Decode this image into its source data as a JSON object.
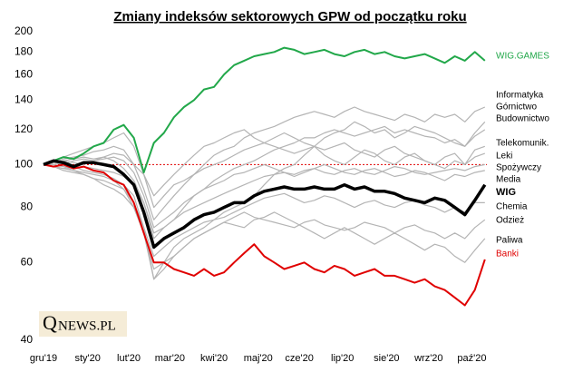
{
  "chart_data": {
    "type": "line",
    "title": "Zmiany indeksów sektorowych GPW od początku roku",
    "logo": {
      "initial": "Q",
      "text": "NEWS.PL"
    },
    "log_scale": true,
    "reference_line": {
      "value": 100,
      "color": "#e00000"
    },
    "x": [
      0,
      1,
      2,
      3,
      4,
      5,
      6,
      7,
      8,
      9,
      10,
      11,
      12,
      13,
      14,
      15,
      16,
      17,
      18,
      19,
      20,
      21,
      22,
      23,
      24,
      25,
      26,
      27,
      28,
      29,
      30,
      31,
      32,
      33,
      34,
      35,
      36,
      37,
      38,
      39,
      40,
      41,
      42,
      43,
      44
    ],
    "xlim": [
      0,
      44.2
    ],
    "xticks": [
      {
        "value": 0,
        "label": "gru'19"
      },
      {
        "value": 4.4,
        "label": "sty'20"
      },
      {
        "value": 8.5,
        "label": "lut'20"
      },
      {
        "value": 12.6,
        "label": "mar'20"
      },
      {
        "value": 17,
        "label": "kwi'20"
      },
      {
        "value": 21.4,
        "label": "maj'20"
      },
      {
        "value": 25.5,
        "label": "cze'20"
      },
      {
        "value": 29.8,
        "label": "lip'20"
      },
      {
        "value": 34.2,
        "label": "sie'20"
      },
      {
        "value": 38.4,
        "label": "wrz'20"
      },
      {
        "value": 42.7,
        "label": "paź'20"
      }
    ],
    "ylim": [
      40,
      200
    ],
    "yticks": [
      40,
      60,
      80,
      100,
      120,
      140,
      160,
      180,
      200
    ],
    "series": [
      {
        "name": "Informatyka",
        "color": "#b4b4b4",
        "values": [
          100,
          101,
          103,
          104,
          105,
          107,
          108,
          110,
          108,
          100,
          88,
          75,
          80,
          85,
          90,
          95,
          100,
          105,
          108,
          110,
          115,
          118,
          120,
          122,
          125,
          128,
          130,
          132,
          130,
          128,
          132,
          135,
          132,
          130,
          128,
          126,
          130,
          128,
          125,
          130,
          128,
          130,
          125,
          132,
          135
        ]
      },
      {
        "name": "Górnictwo",
        "color": "#b4b4b4",
        "values": [
          100,
          99,
          98,
          97,
          96,
          95,
          94,
          92,
          88,
          80,
          70,
          55,
          60,
          65,
          68,
          70,
          72,
          75,
          78,
          80,
          82,
          85,
          90,
          95,
          98,
          100,
          105,
          110,
          115,
          118,
          120,
          125,
          122,
          118,
          120,
          115,
          118,
          122,
          120,
          118,
          115,
          112,
          110,
          118,
          125
        ]
      },
      {
        "name": "Budownictwo",
        "color": "#b4b4b4",
        "values": [
          100,
          101,
          102,
          103,
          104,
          103,
          104,
          102,
          98,
          92,
          82,
          68,
          72,
          75,
          80,
          85,
          88,
          92,
          95,
          98,
          100,
          102,
          105,
          108,
          110,
          112,
          115,
          115,
          118,
          120,
          118,
          116,
          118,
          120,
          122,
          118,
          120,
          118,
          116,
          115,
          112,
          114,
          110,
          116,
          120
        ]
      },
      {
        "name": "Telekomunik.",
        "color": "#b4b4b4",
        "values": [
          100,
          102,
          104,
          106,
          108,
          110,
          112,
          115,
          118,
          110,
          95,
          80,
          85,
          90,
          92,
          95,
          98,
          100,
          102,
          105,
          108,
          110,
          112,
          115,
          118,
          115,
          112,
          110,
          108,
          110,
          112,
          108,
          106,
          104,
          108,
          110,
          106,
          104,
          102,
          100,
          104,
          106,
          100,
          108,
          110
        ]
      },
      {
        "name": "Leki",
        "color": "#b4b4b4",
        "values": [
          100,
          101,
          100,
          102,
          103,
          102,
          104,
          106,
          105,
          100,
          95,
          85,
          90,
          95,
          100,
          105,
          110,
          112,
          115,
          118,
          120,
          115,
          112,
          110,
          108,
          106,
          108,
          110,
          105,
          102,
          100,
          104,
          108,
          106,
          102,
          100,
          104,
          106,
          102,
          100,
          98,
          102,
          100,
          104,
          106
        ]
      },
      {
        "name": "Spożywczy",
        "color": "#b4b4b4",
        "values": [
          100,
          100,
          99,
          98,
          99,
          98,
          97,
          96,
          94,
          90,
          82,
          70,
          72,
          75,
          78,
          80,
          82,
          84,
          86,
          88,
          90,
          92,
          94,
          95,
          96,
          95,
          97,
          98,
          96,
          95,
          97,
          98,
          96,
          95,
          97,
          99,
          98,
          96,
          95,
          96,
          97,
          98,
          97,
          99,
          100
        ]
      },
      {
        "name": "Media",
        "color": "#b4b4b4",
        "values": [
          100,
          101,
          102,
          101,
          100,
          102,
          103,
          104,
          102,
          96,
          85,
          72,
          75,
          78,
          82,
          85,
          88,
          90,
          92,
          95,
          96,
          98,
          100,
          98,
          96,
          94,
          96,
          98,
          100,
          98,
          96,
          95,
          97,
          98,
          96,
          94,
          95,
          97,
          96,
          94,
          92,
          95,
          94,
          96,
          97
        ]
      },
      {
        "name": "Chemia",
        "color": "#b4b4b4",
        "values": [
          100,
          99,
          97,
          96,
          95,
          93,
          92,
          90,
          88,
          82,
          72,
          62,
          65,
          68,
          70,
          72,
          74,
          75,
          76,
          78,
          80,
          82,
          84,
          85,
          86,
          84,
          82,
          83,
          85,
          84,
          82,
          80,
          82,
          83,
          81,
          80,
          82,
          83,
          81,
          80,
          78,
          80,
          78,
          82,
          82
        ]
      },
      {
        "name": "Odzież",
        "color": "#b4b4b4",
        "values": [
          100,
          99,
          98,
          99,
          97,
          96,
          95,
          93,
          90,
          85,
          72,
          55,
          58,
          62,
          65,
          68,
          70,
          72,
          74,
          76,
          78,
          76,
          75,
          74,
          73,
          72,
          74,
          75,
          73,
          72,
          71,
          72,
          74,
          73,
          72,
          70,
          72,
          73,
          71,
          70,
          68,
          70,
          68,
          72,
          75
        ]
      },
      {
        "name": "Paliwa",
        "color": "#b4b4b4",
        "values": [
          100,
          100,
          99,
          97,
          95,
          93,
          90,
          88,
          85,
          80,
          70,
          58,
          60,
          62,
          65,
          68,
          70,
          72,
          74,
          73,
          72,
          75,
          76,
          78,
          76,
          74,
          72,
          70,
          68,
          70,
          72,
          70,
          68,
          66,
          68,
          70,
          68,
          66,
          64,
          66,
          65,
          62,
          60,
          64,
          68
        ]
      },
      {
        "name": "WIG.GAMES",
        "color": "#22a84a",
        "values": [
          100,
          102,
          104,
          103,
          106,
          110,
          112,
          120,
          123,
          115,
          96,
          112,
          118,
          128,
          135,
          140,
          148,
          150,
          160,
          168,
          172,
          176,
          178,
          180,
          184,
          182,
          178,
          180,
          182,
          178,
          176,
          180,
          182,
          178,
          180,
          176,
          174,
          176,
          178,
          174,
          170,
          176,
          172,
          180,
          172
        ]
      },
      {
        "name": "Banki",
        "color": "#e00000",
        "values": [
          100,
          99,
          100,
          98,
          99,
          97,
          96,
          92,
          90,
          82,
          70,
          60,
          60,
          58,
          57,
          56,
          58,
          56,
          57,
          60,
          63,
          66,
          62,
          60,
          58,
          59,
          60,
          58,
          57,
          59,
          58,
          56,
          57,
          58,
          56,
          56,
          55,
          54,
          55,
          53,
          52,
          50,
          48,
          52,
          61
        ]
      },
      {
        "name": "WIG",
        "color": "#000000",
        "values": [
          100,
          102,
          101,
          99,
          101,
          101,
          100,
          99,
          95,
          90,
          78,
          65,
          68,
          70,
          72,
          75,
          77,
          78,
          80,
          82,
          82,
          85,
          87,
          88,
          89,
          88,
          88,
          89,
          88,
          88,
          90,
          88,
          89,
          87,
          87,
          86,
          84,
          83,
          82,
          84,
          83,
          80,
          77,
          83,
          90
        ]
      }
    ]
  }
}
